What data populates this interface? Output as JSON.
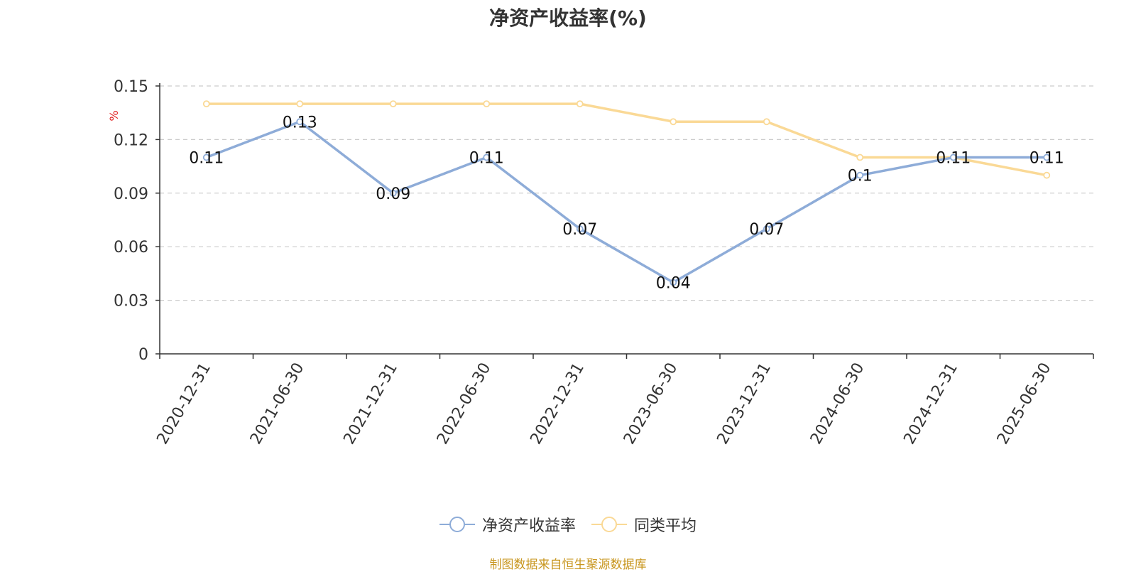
{
  "title": "净资产收益率(%)",
  "source_note": "制图数据来自恒生聚源数据库",
  "colors": {
    "series_main": "#8eacd8",
    "series_avg": "#fad996",
    "grid": "#cccccc",
    "axis": "#333333",
    "unit_label": "#e02020",
    "source": "#c8961e"
  },
  "chart_data": {
    "type": "line",
    "title": "净资产收益率(%)",
    "ylabel": "%",
    "ylim": [
      0,
      0.15
    ],
    "yticks": [
      "0",
      "0.03",
      "0.06",
      "0.09",
      "0.12",
      "0.15"
    ],
    "grid": true,
    "legend_position": "bottom",
    "categories": [
      "2020-12-31",
      "2021-06-30",
      "2021-12-31",
      "2022-06-30",
      "2022-12-31",
      "2023-06-30",
      "2023-12-31",
      "2024-06-30",
      "2024-12-31",
      "2025-06-30"
    ],
    "series": [
      {
        "name": "净资产收益率",
        "values": [
          0.11,
          0.13,
          0.09,
          0.11,
          0.07,
          0.04,
          0.07,
          0.1,
          0.11,
          0.11
        ],
        "labels": [
          "0.11",
          "0.13",
          "0.09",
          "0.11",
          "0.07",
          "0.04",
          "0.07",
          "0.1",
          "0.11",
          "0.11"
        ]
      },
      {
        "name": "同类平均",
        "values": [
          0.14,
          0.14,
          0.14,
          0.14,
          0.14,
          0.13,
          0.13,
          0.11,
          0.11,
          0.1
        ]
      }
    ]
  }
}
